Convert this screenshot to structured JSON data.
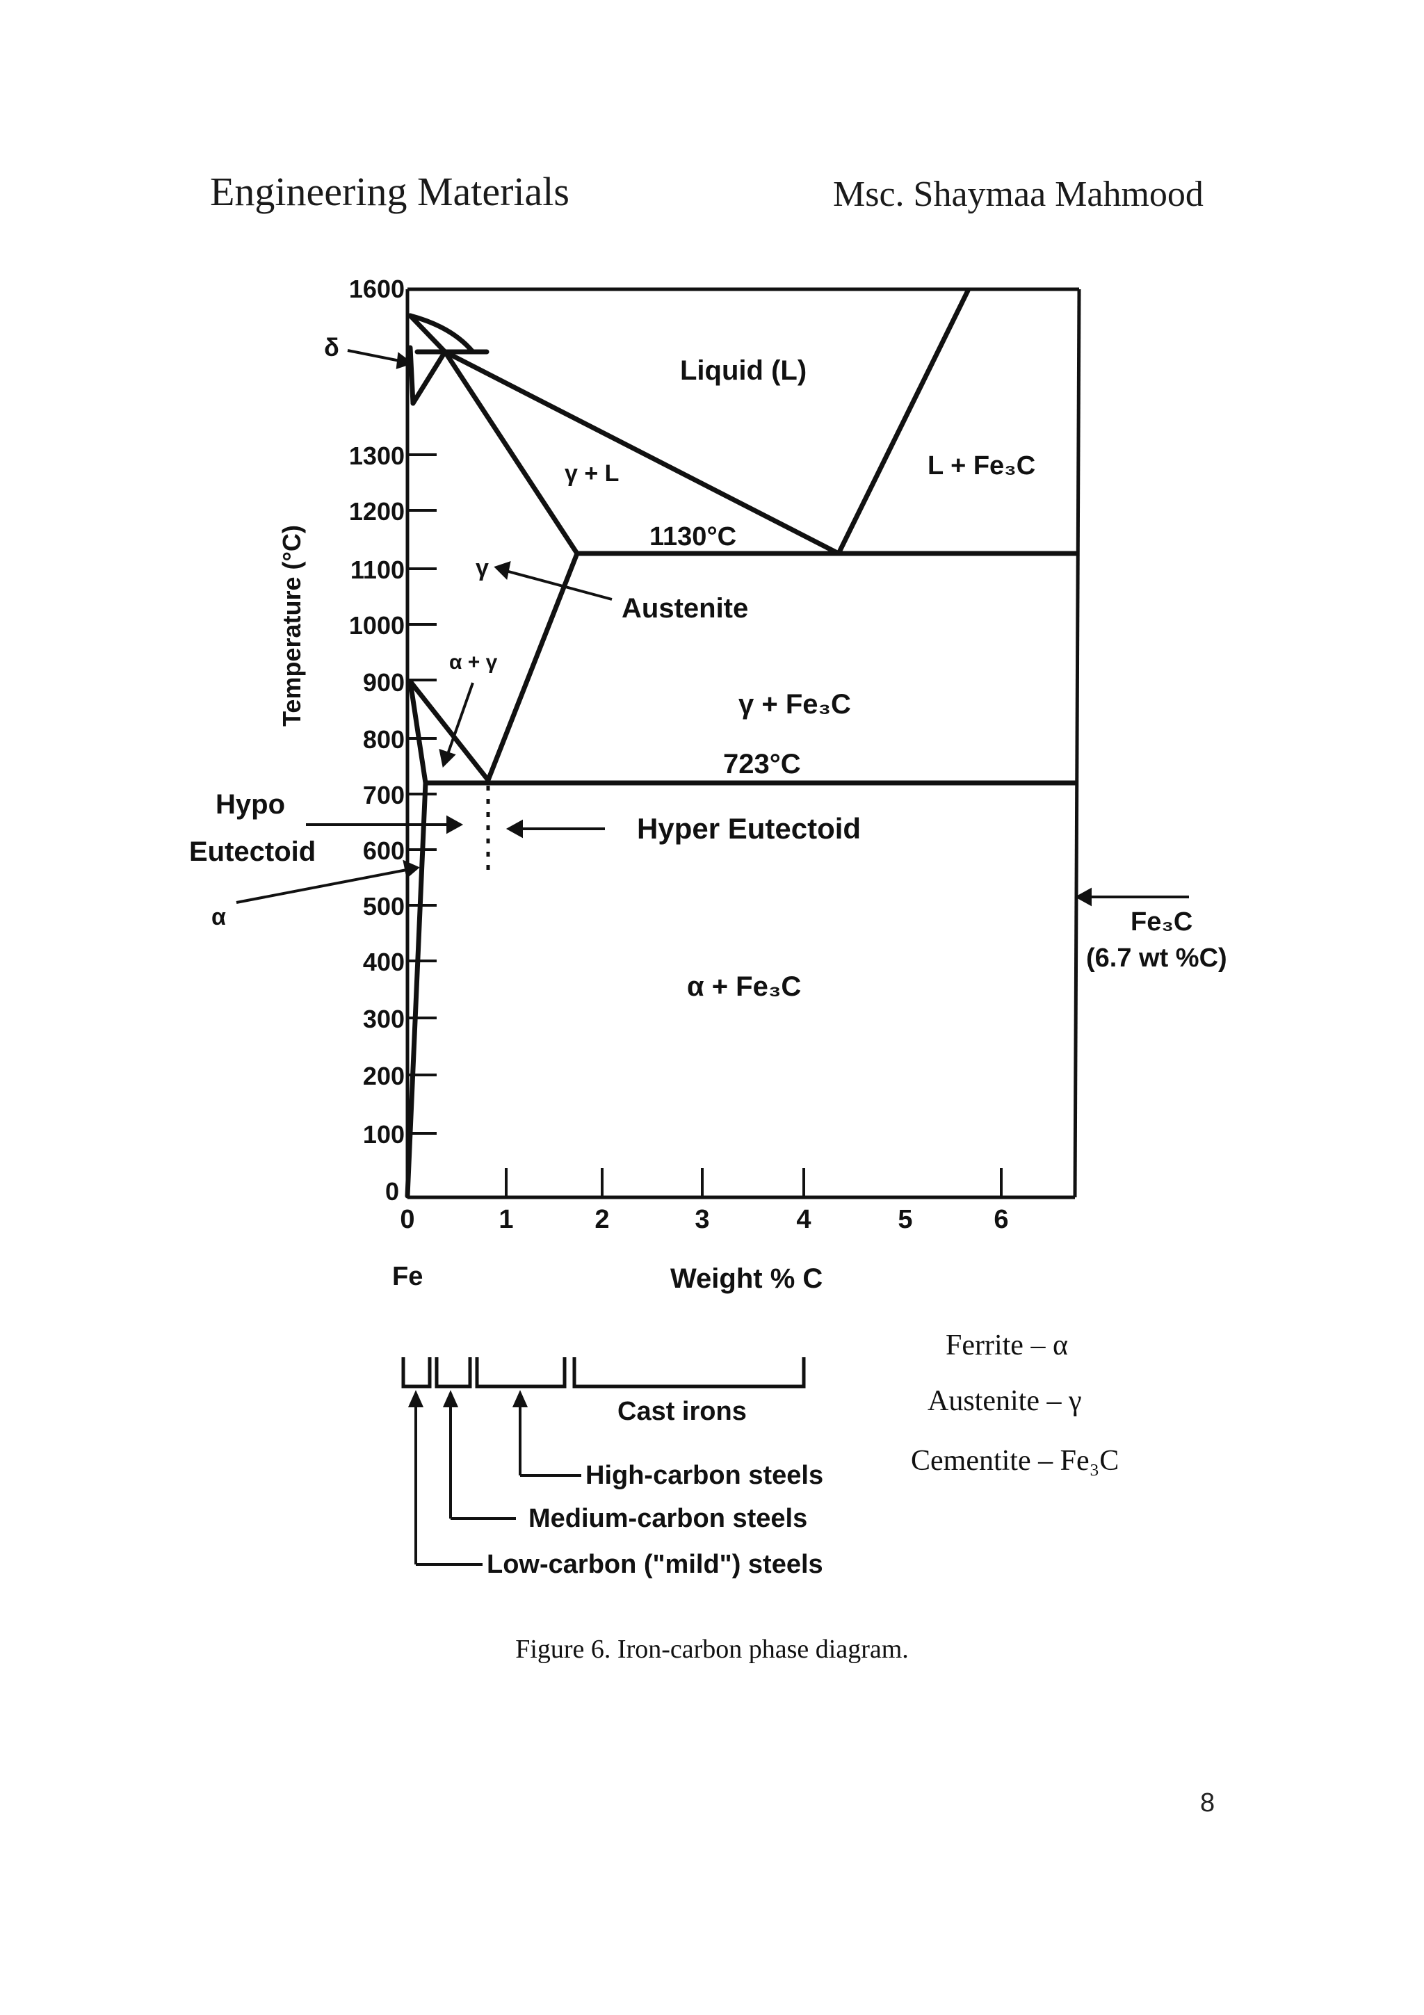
{
  "header": {
    "course": "Engineering Materials",
    "author": "Msc. Shaymaa Mahmood"
  },
  "diagram": {
    "y_axis_label": "Temperature (°C)",
    "y_ticks": [
      "1600",
      "1300",
      "1200",
      "1100",
      "1000",
      "900",
      "800",
      "700",
      "600",
      "500",
      "400",
      "300",
      "200",
      "100",
      "0"
    ],
    "x_ticks": [
      "0",
      "1",
      "2",
      "3",
      "4",
      "5",
      "6"
    ],
    "x_axis_label": "Weight % C",
    "x_origin_label": "Fe",
    "regions": {
      "delta": "δ",
      "liquid": "Liquid (L)",
      "gamma_plus_liquid": "γ + L",
      "liquid_plus_cementite": "L + Fe₃C",
      "eutectic_temp": "1130°C",
      "gamma": "γ",
      "austenite": "Austenite",
      "alpha_plus_gamma": "α + γ",
      "gamma_plus_cementite": "γ + Fe₃C",
      "eutectoid_temp": "723°C",
      "hypo_line1": "Hypo",
      "hypo_line2": "Eutectoid",
      "hyper": "Hyper Eutectoid",
      "alpha": "α",
      "cementite_line1": "Fe₃C",
      "cementite_line2": "(6.7 wt %C)",
      "alpha_plus_cementite": "α + Fe₃C"
    },
    "steel_classes": {
      "cast_irons": "Cast irons",
      "high_carbon": "High-carbon steels",
      "medium_carbon": "Medium-carbon steels",
      "low_carbon": "Low-carbon (\"mild\") steels"
    },
    "legend": {
      "ferrite": "Ferrite – α",
      "austenite": "Austenite – γ",
      "cementite": "Cementite – Fe₃C"
    }
  },
  "caption": "Figure 6. Iron-carbon phase diagram.",
  "page_number": "8"
}
